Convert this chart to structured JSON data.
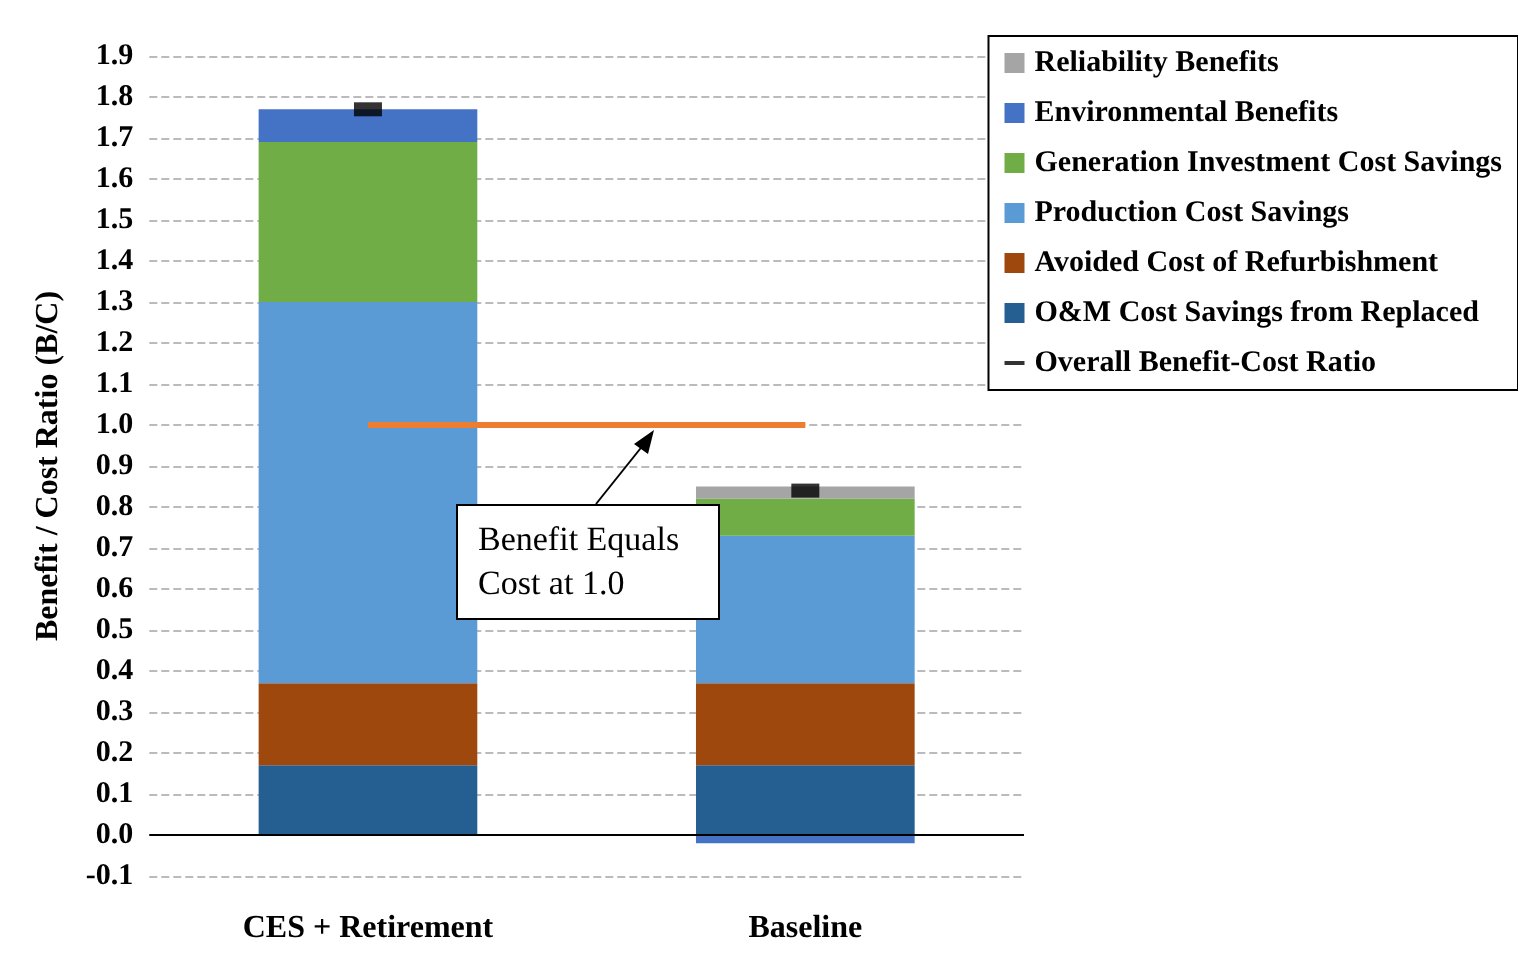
{
  "chart_data": {
    "type": "bar",
    "stacked": true,
    "ylabel": "Benefit / Cost Ratio (B/C)",
    "categories": [
      "CES + Retirement",
      "Baseline"
    ],
    "series": [
      {
        "name": "O&M Cost Savings from Replaced",
        "color": "#255e91",
        "values": [
          0.17,
          0.17
        ]
      },
      {
        "name": "Avoided Cost of Refurbishment",
        "color": "#9e480e",
        "values": [
          0.2,
          0.2
        ]
      },
      {
        "name": "Production Cost Savings",
        "color": "#5b9bd5",
        "values": [
          0.93,
          0.36
        ]
      },
      {
        "name": "Generation Investment Cost Savings",
        "color": "#70ad47",
        "values": [
          0.39,
          0.09
        ]
      },
      {
        "name": "Environmental Benefits",
        "color": "#4472c4",
        "values": [
          0.08,
          -0.02
        ]
      },
      {
        "name": "Reliability Benefits",
        "color": "#a5a5a5",
        "values": [
          0,
          0.03
        ]
      },
      {
        "name": "Overall Benefit-Cost Ratio",
        "type": "scatter",
        "color": "#000000",
        "values": [
          1.77,
          0.84
        ]
      }
    ],
    "ylim": [
      -0.1,
      1.9
    ],
    "yticks": [
      {
        "value": -0.1,
        "label": "-0.1"
      },
      {
        "value": 0,
        "label": "0.0"
      },
      {
        "value": 0.1,
        "label": "0.1"
      },
      {
        "value": 0.2,
        "label": "0.2"
      },
      {
        "value": 0.3,
        "label": "0.3"
      },
      {
        "value": 0.4,
        "label": "0.4"
      },
      {
        "value": 0.5,
        "label": "0.5"
      },
      {
        "value": 0.6,
        "label": "0.6"
      },
      {
        "value": 0.7,
        "label": "0.7"
      },
      {
        "value": 0.8,
        "label": "0.8"
      },
      {
        "value": 0.9,
        "label": "0.9"
      },
      {
        "value": 1,
        "label": "1.0"
      },
      {
        "value": 1.1,
        "label": "1.1"
      },
      {
        "value": 1.2,
        "label": "1.2"
      },
      {
        "value": 1.3,
        "label": "1.3"
      },
      {
        "value": 1.4,
        "label": "1.4"
      },
      {
        "value": 1.5,
        "label": "1.5"
      },
      {
        "value": 1.6,
        "label": "1.6"
      },
      {
        "value": 1.7,
        "label": "1.7"
      },
      {
        "value": 1.8,
        "label": "1.8"
      },
      {
        "value": 1.9,
        "label": "1.9"
      }
    ],
    "ref_lines": [
      {
        "axis": "y",
        "value": 1.0,
        "color": "#ed7d31"
      }
    ],
    "annotations": [
      "Benefit Equals Cost at 1.0"
    ],
    "grid": "y",
    "legend": "top right"
  }
}
